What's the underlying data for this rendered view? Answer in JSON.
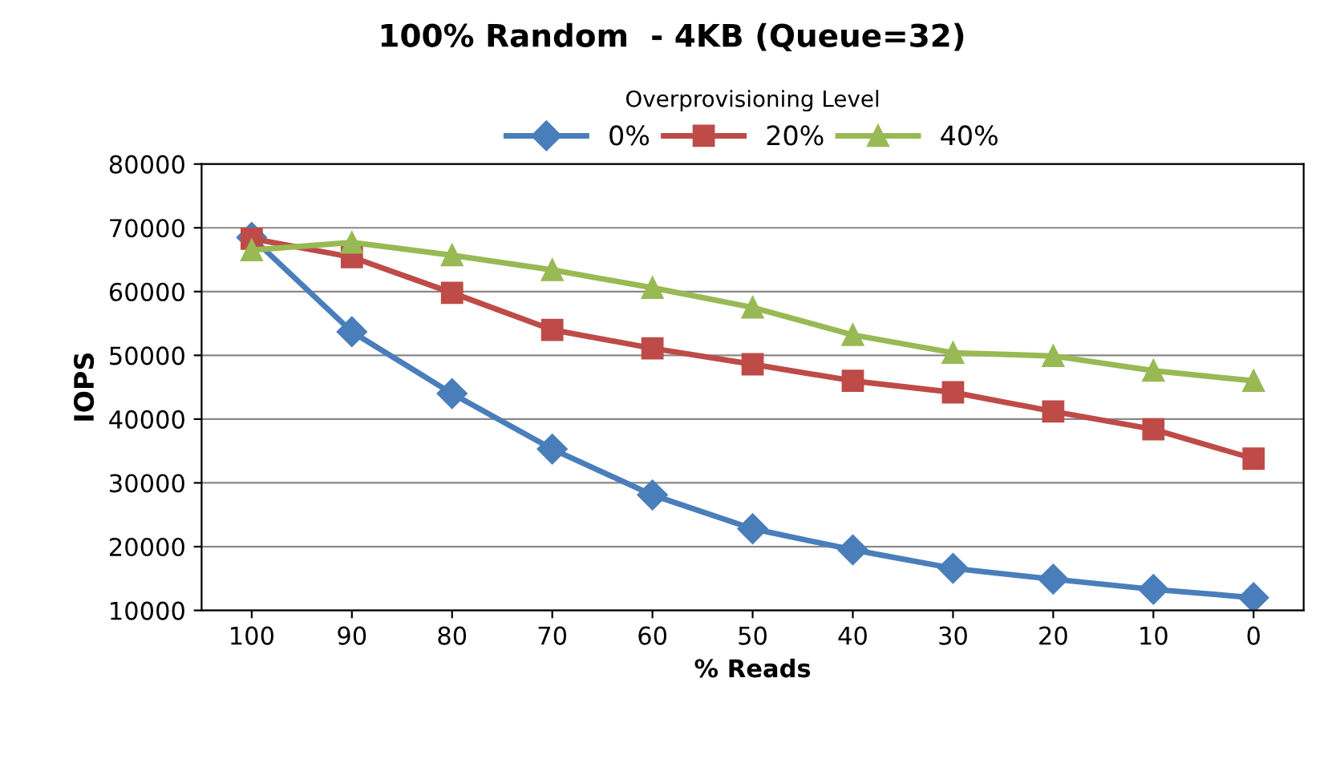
{
  "chart_data": {
    "type": "line",
    "title": "100% Random  - 4KB (Queue=32)",
    "legend_title": "Overprovisioning Level",
    "xlabel": "% Reads",
    "ylabel": "IOPS",
    "categories": [
      "100",
      "90",
      "80",
      "70",
      "60",
      "50",
      "40",
      "30",
      "20",
      "10",
      "0"
    ],
    "series": [
      {
        "name": "0%",
        "color": "#4a7ebb",
        "marker": "diamond",
        "values": [
          68500,
          53700,
          44000,
          35300,
          28100,
          22800,
          19500,
          16600,
          14900,
          13300,
          12000
        ]
      },
      {
        "name": "20%",
        "color": "#be4b48",
        "marker": "square",
        "values": [
          68300,
          65400,
          59800,
          54000,
          51100,
          48600,
          46000,
          44200,
          41200,
          38400,
          33800
        ]
      },
      {
        "name": "40%",
        "color": "#98b954",
        "marker": "triangle",
        "values": [
          66500,
          67700,
          65700,
          63400,
          60600,
          57500,
          53200,
          50400,
          49900,
          47600,
          46000
        ]
      }
    ],
    "ylim": [
      10000,
      80000
    ],
    "yticks": [
      10000,
      20000,
      30000,
      40000,
      50000,
      60000,
      70000,
      80000
    ],
    "grid": "y",
    "legend": "top",
    "line_style": "solid"
  }
}
